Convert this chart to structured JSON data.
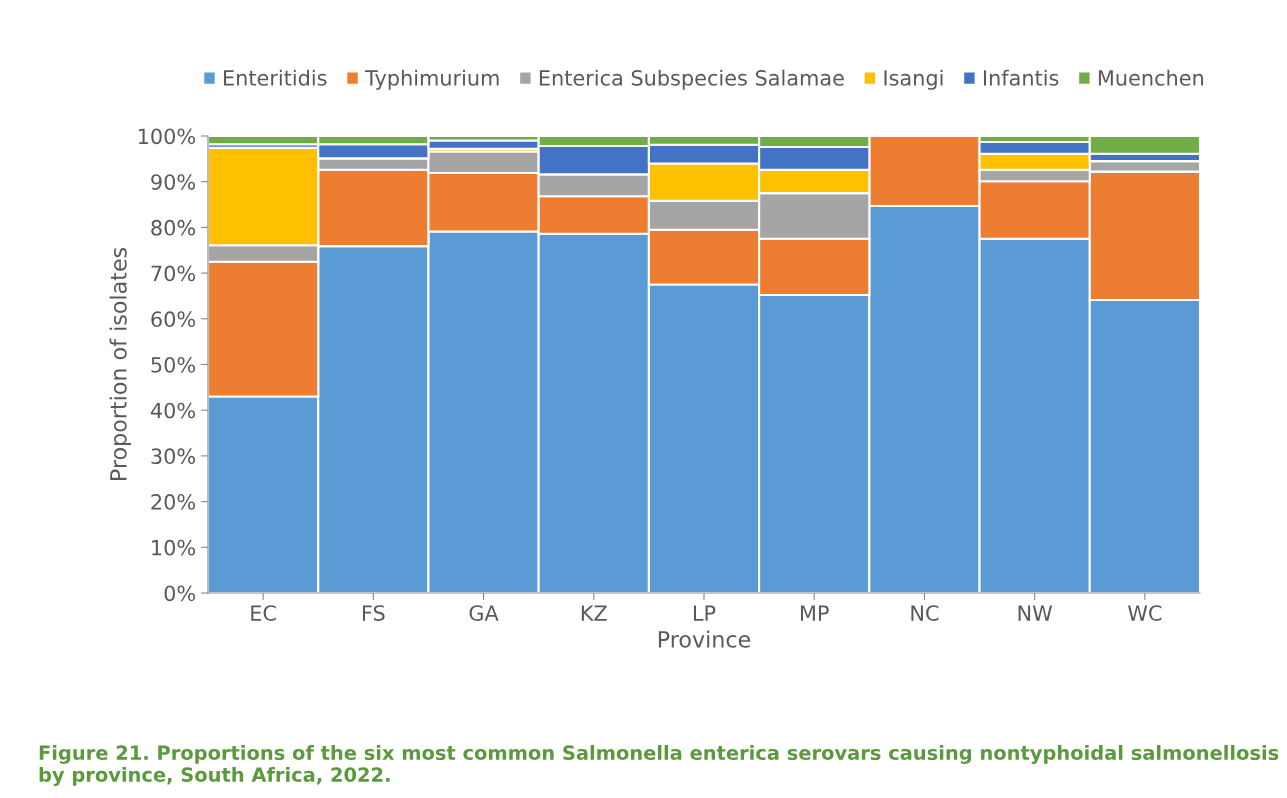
{
  "chart_data": {
    "type": "bar",
    "stacked": true,
    "title": "Figure 21. Proportions of the six most common Salmonella enterica serovars causing nontyphoidal salmonellosis by province, South Africa, 2022.",
    "xlabel": "Province",
    "ylabel": "Proportion of isolates",
    "categories": [
      "EC",
      "FS",
      "GA",
      "KZ",
      "LP",
      "MP",
      "NC",
      "NW",
      "WC"
    ],
    "series": [
      {
        "name": "Enteritidis",
        "color": "#5b9bd5",
        "values": [
          43.0,
          75.9,
          79.1,
          78.6,
          67.5,
          65.2,
          84.7,
          77.5,
          64.1
        ]
      },
      {
        "name": "Typhimurium",
        "color": "#ed7d31",
        "values": [
          29.5,
          16.7,
          12.8,
          8.2,
          12.0,
          12.3,
          15.3,
          12.6,
          28.1
        ]
      },
      {
        "name": "Enterica Subspecies Salamae",
        "color": "#a5a5a5",
        "values": [
          3.6,
          2.5,
          4.7,
          4.8,
          6.3,
          10.0,
          null,
          2.5,
          2.3
        ]
      },
      {
        "name": "Isangi",
        "color": "#ffc000",
        "values": [
          21.3,
          null,
          0.6,
          null,
          8.2,
          5.1,
          null,
          3.5,
          null
        ]
      },
      {
        "name": "Infantis",
        "color": "#4472c4",
        "values": [
          0.8,
          3.1,
          1.8,
          6.2,
          4.1,
          5.0,
          null,
          2.6,
          1.6
        ]
      },
      {
        "name": "Muenchen",
        "color": "#70ad47",
        "values": [
          1.8,
          1.8,
          1.0,
          2.2,
          1.9,
          2.4,
          null,
          1.3,
          3.9
        ]
      }
    ],
    "ylim": [
      0,
      100
    ],
    "yticks": [
      {
        "value": 0,
        "label": "0%"
      },
      {
        "value": 10,
        "label": "10%"
      },
      {
        "value": 20,
        "label": "20%"
      },
      {
        "value": 30,
        "label": "30%"
      },
      {
        "value": 40,
        "label": "40%"
      },
      {
        "value": 50,
        "label": "50%"
      },
      {
        "value": 60,
        "label": "60%"
      },
      {
        "value": 70,
        "label": "70%"
      },
      {
        "value": 80,
        "label": "80%"
      },
      {
        "value": 90,
        "label": "90%"
      },
      {
        "value": 100,
        "label": "100%"
      }
    ],
    "grid": false,
    "legend": "top"
  }
}
